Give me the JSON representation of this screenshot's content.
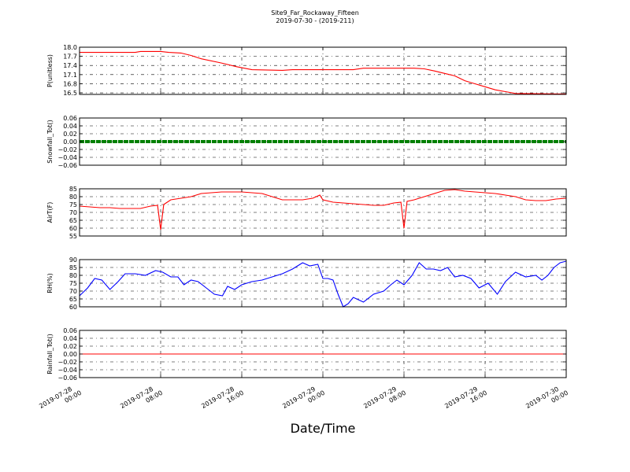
{
  "chart_data": {
    "type": "line",
    "title": "Site9_Far_Rockaway_Fifteen",
    "subtitle": "2019-07-30 - (2019-211)",
    "xlabel": "Date/Time",
    "x_ticks": [
      "2019-07-28 00:00",
      "2019-07-28 08:00",
      "2019-07-28 16:00",
      "2019-07-29 00:00",
      "2019-07-29 08:00",
      "2019-07-29 16:00",
      "2019-07-30 00:00"
    ],
    "x_ticks_line1": [
      "2019-07-28",
      "2019-07-28",
      "2019-07-28",
      "2019-07-29",
      "2019-07-29",
      "2019-07-29",
      "2019-07-30"
    ],
    "x_ticks_line2": [
      "00:00",
      "08:00",
      "16:00",
      "00:00",
      "08:00",
      "16:00",
      "00:00"
    ],
    "xlim_hours": [
      0,
      48
    ],
    "grid": true,
    "panels": [
      {
        "ylabel": "P(unitless)",
        "color": "#ff0000",
        "ylim": [
          16.45,
          18.0
        ],
        "y_ticks": [
          "18.0",
          "17.7",
          "17.4",
          "17.1",
          "16.8",
          "16.5"
        ],
        "series": [
          {
            "x": [
              0,
              3,
              5.5,
              6,
              8,
              8.8,
              10,
              11,
              12,
              14,
              15.5,
              17,
              20,
              21,
              24,
              27,
              28,
              31,
              33,
              34,
              35,
              36,
              37,
              37.5,
              38,
              39,
              40,
              41,
              42,
              43,
              48
            ],
            "y": [
              17.83,
              17.83,
              17.83,
              17.86,
              17.86,
              17.83,
              17.81,
              17.73,
              17.62,
              17.48,
              17.36,
              17.26,
              17.24,
              17.26,
              17.26,
              17.26,
              17.31,
              17.31,
              17.31,
              17.29,
              17.22,
              17.14,
              17.06,
              16.98,
              16.9,
              16.8,
              16.7,
              16.6,
              16.54,
              16.48,
              16.46
            ]
          }
        ]
      },
      {
        "ylabel": "Snowfall_Tot()",
        "color": "#008000",
        "ylim": [
          -0.06,
          0.06
        ],
        "y_ticks": [
          "0.06",
          "0.04",
          "0.02",
          "0.00",
          "−0.02",
          "−0.04",
          "−0.06"
        ],
        "series": [
          {
            "x": [
              0,
              48
            ],
            "y": [
              0,
              0
            ]
          }
        ]
      },
      {
        "ylabel": "AirT(F)",
        "color": "#ff0000",
        "ylim": [
          55,
          85
        ],
        "y_ticks": [
          "85",
          "80",
          "75",
          "70",
          "65",
          "60",
          "55"
        ],
        "series": [
          {
            "x": [
              0,
              1,
              2,
              3,
              4,
              5,
              6,
              7,
              7.7,
              8,
              8.3,
              9,
              10,
              11,
              12,
              13,
              14,
              15,
              16,
              17,
              18,
              19,
              20,
              21,
              22,
              23,
              23.7,
              24,
              25,
              26,
              27,
              28,
              29,
              30,
              31,
              31.7,
              32,
              32.3,
              33,
              34,
              35,
              36,
              37,
              38,
              39,
              40,
              41,
              42,
              43,
              44,
              45,
              46,
              47,
              48
            ],
            "y": [
              74,
              73.5,
              73,
              73,
              72.5,
              72.5,
              72.5,
              74,
              74.5,
              59,
              75,
              78,
              79,
              80,
              82,
              82.5,
              83,
              83,
              83,
              82.5,
              82,
              80,
              78,
              78,
              78,
              79,
              81,
              78,
              76.5,
              76,
              75.5,
              75,
              74.5,
              74.5,
              76,
              76.5,
              60,
              77,
              78,
              80,
              82,
              84,
              84.5,
              83.5,
              83,
              82.5,
              82,
              81,
              80,
              78,
              77.5,
              77.5,
              78.5,
              79
            ]
          }
        ]
      },
      {
        "ylabel": "RH(%)",
        "color": "#0000ff",
        "ylim": [
          60,
          90
        ],
        "y_ticks": [
          "90",
          "85",
          "80",
          "75",
          "70",
          "65",
          "60"
        ],
        "series": [
          {
            "x": [
              0,
              0.8,
              1.5,
              2.2,
              3,
              3.8,
              4.5,
              5.5,
              6.5,
              7.5,
              8.2,
              9,
              9.7,
              10.3,
              11,
              11.7,
              12.5,
              13.3,
              14.1,
              14.6,
              15.3,
              16,
              17,
              18,
              19,
              20,
              21,
              22,
              22.7,
              23.5,
              24,
              24.5,
              25,
              25.5,
              26,
              26.5,
              27,
              28,
              29,
              30,
              30.7,
              31.3,
              32,
              32.8,
              33.5,
              34.2,
              34.9,
              35.6,
              36.3,
              37,
              37.8,
              38.6,
              39.4,
              40.3,
              41.2,
              42,
              43,
              44,
              45,
              45.6,
              46.2,
              46.8,
              47.4,
              48
            ],
            "y": [
              67,
              72,
              78,
              77,
              71,
              76,
              81,
              81,
              80,
              83,
              82,
              79,
              79,
              74,
              77,
              76,
              72,
              68,
              67,
              73,
              71,
              74,
              76,
              77,
              79,
              81,
              84,
              88,
              86,
              87,
              78,
              78,
              77,
              68,
              60,
              62,
              66,
              63,
              68,
              70,
              74,
              77,
              74,
              80,
              88,
              84,
              84,
              83,
              85,
              79,
              80,
              78,
              72,
              75,
              68,
              76,
              82,
              79,
              80,
              77,
              80,
              85,
              88,
              89
            ]
          }
        ]
      },
      {
        "ylabel": "Rainfall_Tot()",
        "color": "#ff0000",
        "ylim": [
          -0.06,
          0.06
        ],
        "y_ticks": [
          "0.06",
          "0.04",
          "0.02",
          "0.00",
          "−0.02",
          "−0.04",
          "−0.06"
        ],
        "series": [
          {
            "x": [
              0,
              48
            ],
            "y": [
              0,
              0
            ]
          }
        ]
      }
    ]
  }
}
